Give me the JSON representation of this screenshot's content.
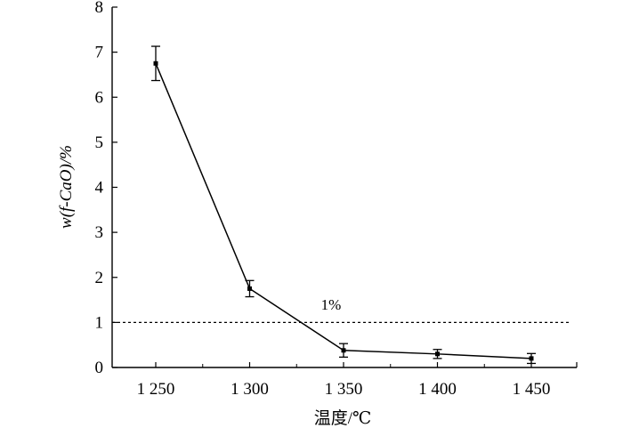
{
  "chart_data": {
    "type": "line",
    "xlabel": "温度/℃",
    "ylabel": "w(f-CaO)/%",
    "categories": [
      "1 250",
      "1 300",
      "1 350",
      "1 400",
      "1 450"
    ],
    "x": [
      1250,
      1300,
      1350,
      1400,
      1450
    ],
    "ylim": [
      0,
      8
    ],
    "yticks": [
      "0",
      "1",
      "2",
      "3",
      "4",
      "5",
      "6",
      "7",
      "8"
    ],
    "series": [
      {
        "values": [
          6.75,
          1.75,
          0.38,
          0.3,
          0.2
        ],
        "error": [
          0.38,
          0.18,
          0.15,
          0.1,
          0.11
        ]
      }
    ],
    "reference_line": {
      "value": 1,
      "label": "1%",
      "style": "dashed"
    },
    "grid": false,
    "legend": "none"
  }
}
